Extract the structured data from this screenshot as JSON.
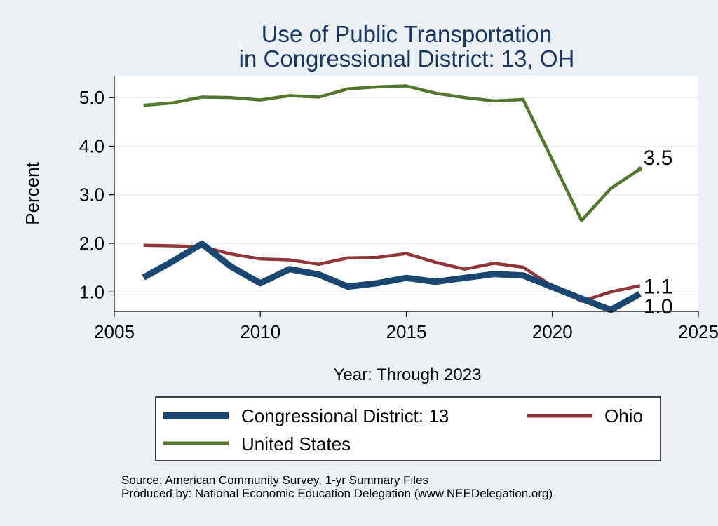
{
  "chart_data": {
    "type": "line",
    "title": "Use of Public Transportation",
    "subtitle": "in Congressional District: 13, OH",
    "xlabel": "Year: Through 2023",
    "ylabel": "Percent",
    "xlim": [
      2005,
      2025
    ],
    "ylim": [
      0.6,
      5.45
    ],
    "xticks": [
      2005,
      2010,
      2015,
      2020,
      2025
    ],
    "yticks": [
      1.0,
      2.0,
      3.0,
      4.0,
      5.0
    ],
    "ytick_labels": [
      "1.0",
      "2.0",
      "3.0",
      "4.0",
      "5.0"
    ],
    "grid": "horizontal",
    "legend_position": "bottom",
    "x": [
      2006,
      2007,
      2008,
      2009,
      2010,
      2011,
      2012,
      2013,
      2014,
      2015,
      2016,
      2017,
      2018,
      2019,
      2020,
      2021,
      2022,
      2023
    ],
    "series": [
      {
        "name": "Congressional District: 13",
        "color": "#1a476f",
        "width": "thick",
        "values": [
          1.3,
          1.63,
          1.99,
          1.52,
          1.18,
          1.47,
          1.36,
          1.11,
          1.18,
          1.29,
          1.21,
          1.29,
          1.37,
          1.34,
          1.1,
          0.86,
          0.63,
          0.96
        ],
        "end_label": "1.0"
      },
      {
        "name": "Ohio",
        "color": "#90353b",
        "width": "medium",
        "values": [
          1.96,
          1.95,
          1.93,
          1.78,
          1.68,
          1.66,
          1.57,
          1.7,
          1.71,
          1.79,
          1.61,
          1.47,
          1.59,
          1.51,
          1.12,
          0.81,
          1.0,
          1.13
        ],
        "end_label": "1.1"
      },
      {
        "name": "United States",
        "color": "#55752f",
        "width": "medium",
        "values": [
          4.84,
          4.89,
          5.01,
          5.0,
          4.95,
          5.04,
          5.01,
          5.18,
          5.22,
          5.24,
          5.09,
          5.0,
          4.93,
          4.96,
          null,
          2.47,
          3.13,
          3.53
        ],
        "end_label": "3.5"
      }
    ]
  },
  "legend_items": [
    "Congressional District: 13",
    "Ohio",
    "United States"
  ],
  "footer": {
    "source": "Source: American Community Survey, 1-yr Summary Files",
    "produced": "Produced by: National Economic Education Delegation (www.NEEDelegation.org)"
  }
}
